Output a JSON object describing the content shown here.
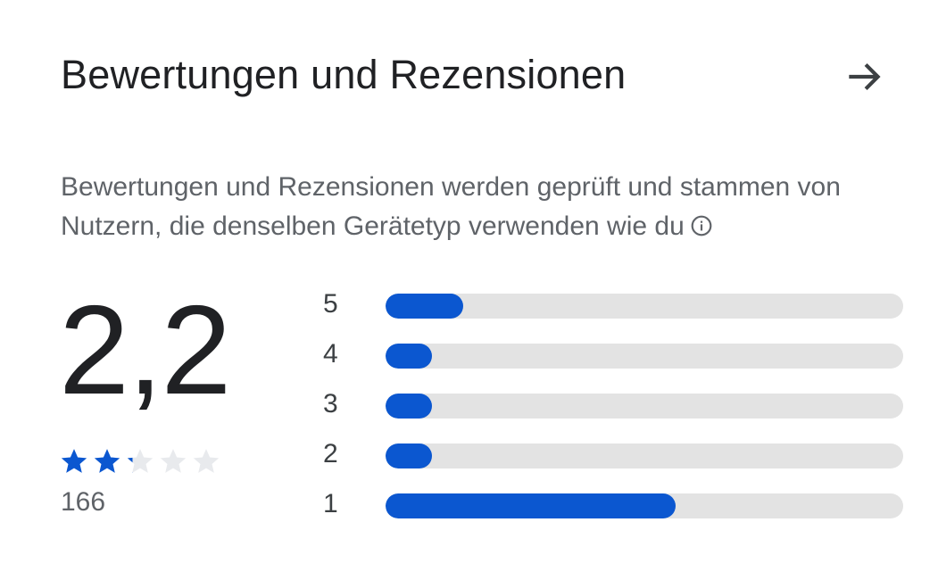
{
  "header": {
    "title": "Bewertungen und Rezensionen",
    "arrow_icon": "arrow-right-icon"
  },
  "description": {
    "text": "Bewertungen und Rezensionen werden geprüft und stammen von Nutzern, die denselben Gerätetyp verwenden wie du",
    "info_icon": "info-icon"
  },
  "rating": {
    "score": "2,2",
    "stars_value": 2.2,
    "stars_max": 5,
    "count": "166"
  },
  "distribution": [
    {
      "label": "5",
      "fraction": 0.15
    },
    {
      "label": "4",
      "fraction": 0.09
    },
    {
      "label": "3",
      "fraction": 0.09
    },
    {
      "label": "2",
      "fraction": 0.09
    },
    {
      "label": "1",
      "fraction": 0.56
    }
  ],
  "colors": {
    "accent": "#0b57d0",
    "track": "#e3e3e3",
    "star_empty": "#e8eaed"
  }
}
